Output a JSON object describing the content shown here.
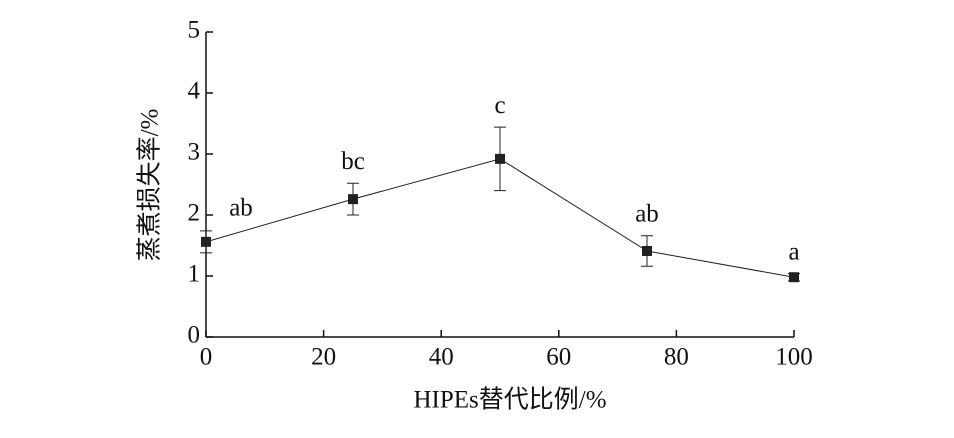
{
  "chart_data": {
    "type": "line",
    "x_label": "HIPEs替代比例/%",
    "y_label": "蒸煮损失率/%",
    "x": [
      0,
      25,
      50,
      75,
      100
    ],
    "series": [
      {
        "name": "蒸煮损失率",
        "color": "#222222",
        "values": [
          1.56,
          2.26,
          2.92,
          1.41,
          0.98
        ],
        "errors": [
          0.18,
          0.26,
          0.52,
          0.25,
          0.06
        ],
        "annotations": [
          "ab",
          "bc",
          "c",
          "ab",
          "a"
        ]
      }
    ],
    "xlim": [
      0,
      100
    ],
    "xticks": [
      0,
      20,
      40,
      60,
      80,
      100
    ],
    "ylim": [
      0,
      5
    ],
    "yticks": [
      0,
      1,
      2,
      3,
      4,
      5
    ],
    "grid": false
  }
}
